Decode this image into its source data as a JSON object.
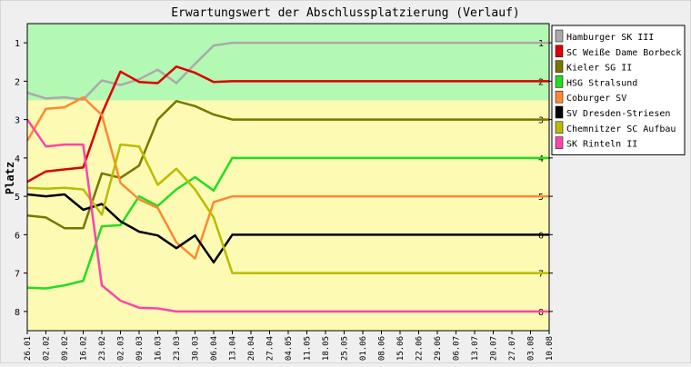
{
  "chart_data": {
    "type": "line",
    "title": "Erwartungswert der Abschlussplatzierung (Verlauf)",
    "ylabel": "Platz",
    "xlabel": "",
    "ylim": [
      0.5,
      8.5
    ],
    "y_inverted": true,
    "y_ticks": [
      1,
      2,
      3,
      4,
      5,
      6,
      7,
      8
    ],
    "grid": false,
    "legend_position": "right",
    "background_bands": [
      {
        "from": 0.5,
        "to": 2.5,
        "color": "#b3f8b3"
      },
      {
        "from": 2.5,
        "to": 8.5,
        "color": "#fdfbb3"
      }
    ],
    "x": [
      "26.01",
      "02.02",
      "09.02",
      "16.02",
      "23.02",
      "02.03",
      "09.03",
      "16.03",
      "23.03",
      "30.03",
      "06.04",
      "13.04",
      "20.04",
      "27.04",
      "04.05",
      "11.05",
      "18.05",
      "25.05",
      "01.06",
      "08.06",
      "15.06",
      "22.06",
      "29.06",
      "06.07",
      "13.07",
      "20.07",
      "27.07",
      "03.08",
      "10.08"
    ],
    "series": [
      {
        "name": "Hamburger SK III",
        "color": "#aaaaaa",
        "values": [
          2.3,
          2.45,
          2.42,
          2.48,
          1.98,
          2.1,
          1.95,
          1.7,
          2.05,
          1.55,
          1.07,
          1.0,
          1.0,
          1.0,
          1.0,
          1.0,
          1.0,
          1.0,
          1.0,
          1.0,
          1.0,
          1.0,
          1.0,
          1.0,
          1.0,
          1.0,
          1.0,
          1.0,
          1.0
        ]
      },
      {
        "name": "SC Weiße Dame Borbeck",
        "color": "#dd0000",
        "values": [
          4.62,
          4.35,
          4.3,
          4.25,
          2.85,
          1.75,
          2.02,
          2.05,
          1.62,
          1.78,
          2.02,
          2.0,
          2.0,
          2.0,
          2.0,
          2.0,
          2.0,
          2.0,
          2.0,
          2.0,
          2.0,
          2.0,
          2.0,
          2.0,
          2.0,
          2.0,
          2.0,
          2.0,
          2.0
        ]
      },
      {
        "name": "Kieler SG II",
        "color": "#777700",
        "values": [
          5.5,
          5.55,
          5.83,
          5.83,
          4.4,
          4.52,
          4.2,
          3.0,
          2.52,
          2.65,
          2.87,
          3.0,
          3.0,
          3.0,
          3.0,
          3.0,
          3.0,
          3.0,
          3.0,
          3.0,
          3.0,
          3.0,
          3.0,
          3.0,
          3.0,
          3.0,
          3.0,
          3.0,
          3.0
        ]
      },
      {
        "name": "HSG Stralsund",
        "color": "#22dd22",
        "values": [
          7.38,
          7.4,
          7.32,
          7.2,
          5.78,
          5.75,
          5.0,
          5.25,
          4.82,
          4.5,
          4.85,
          4.0,
          4.0,
          4.0,
          4.0,
          4.0,
          4.0,
          4.0,
          4.0,
          4.0,
          4.0,
          4.0,
          4.0,
          4.0,
          4.0,
          4.0,
          4.0,
          4.0,
          4.0
        ]
      },
      {
        "name": "Coburger SV",
        "color": "#ff8833",
        "values": [
          3.55,
          2.72,
          2.68,
          2.42,
          2.88,
          4.65,
          5.08,
          5.3,
          6.2,
          6.62,
          5.15,
          5.0,
          5.0,
          5.0,
          5.0,
          5.0,
          5.0,
          5.0,
          5.0,
          5.0,
          5.0,
          5.0,
          5.0,
          5.0,
          5.0,
          5.0,
          5.0,
          5.0,
          5.0
        ]
      },
      {
        "name": "SV Dresden-Striesen",
        "color": "#000000",
        "values": [
          4.95,
          5.0,
          4.95,
          5.35,
          5.2,
          5.65,
          5.92,
          6.02,
          6.35,
          6.02,
          6.72,
          6.0,
          6.0,
          6.0,
          6.0,
          6.0,
          6.0,
          6.0,
          6.0,
          6.0,
          6.0,
          6.0,
          6.0,
          6.0,
          6.0,
          6.0,
          6.0,
          6.0,
          6.0
        ]
      },
      {
        "name": "Chemnitzer SC Aufbau",
        "color": "#bbbb00",
        "values": [
          4.78,
          4.8,
          4.78,
          4.82,
          5.48,
          3.65,
          3.7,
          4.7,
          4.28,
          4.82,
          5.55,
          7.0,
          7.0,
          7.0,
          7.0,
          7.0,
          7.0,
          7.0,
          7.0,
          7.0,
          7.0,
          7.0,
          7.0,
          7.0,
          7.0,
          7.0,
          7.0,
          7.0,
          7.0
        ]
      },
      {
        "name": "SK Rinteln II",
        "color": "#ff44aa",
        "values": [
          3.0,
          3.7,
          3.65,
          3.65,
          7.32,
          7.72,
          7.9,
          7.92,
          8.0,
          8.0,
          8.0,
          8.0,
          8.0,
          8.0,
          8.0,
          8.0,
          8.0,
          8.0,
          8.0,
          8.0,
          8.0,
          8.0,
          8.0,
          8.0,
          8.0,
          8.0,
          8.0,
          8.0,
          8.0
        ]
      }
    ]
  }
}
